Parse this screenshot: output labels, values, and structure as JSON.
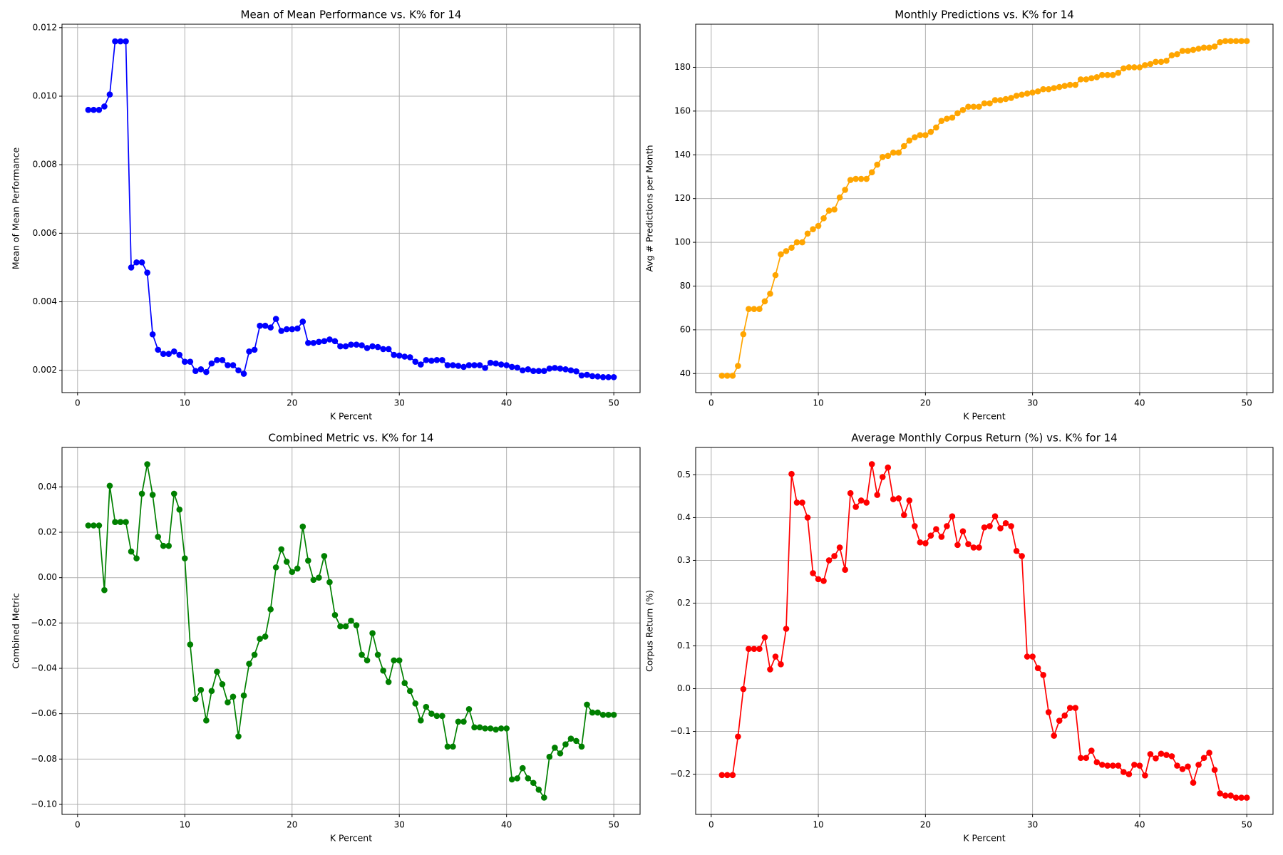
{
  "chart_data": [
    {
      "type": "line",
      "title": "Mean of Mean Performance vs. K% for 14",
      "x_label": "K Percent",
      "y_label": "Mean of Mean Performance",
      "color": "#0000ff",
      "grid": true,
      "xlim": [
        -1.45,
        52.45
      ],
      "ylim": [
        0.00135,
        0.0121
      ],
      "xticks": [
        0,
        10,
        20,
        30,
        40,
        50
      ],
      "yticks": [
        0.002,
        0.004,
        0.006,
        0.008,
        {
          "value": 0.01,
          "label": "0.010"
        },
        0.012
      ],
      "x": [
        1,
        1.5,
        2,
        2.5,
        3,
        3.5,
        4,
        4.5,
        5,
        5.5,
        6,
        6.5,
        7,
        7.5,
        8,
        8.5,
        9,
        9.5,
        10,
        10.5,
        11,
        11.5,
        12,
        12.5,
        13,
        13.5,
        14,
        14.5,
        15,
        15.5,
        16,
        16.5,
        17,
        17.5,
        18,
        18.5,
        19,
        19.5,
        20,
        20.5,
        21,
        21.5,
        22,
        22.5,
        23,
        23.5,
        24,
        24.5,
        25,
        25.5,
        26,
        26.5,
        27,
        27.5,
        28,
        28.5,
        29,
        29.5,
        30,
        30.5,
        31,
        31.5,
        32,
        32.5,
        33,
        33.5,
        34,
        34.5,
        35,
        35.5,
        36,
        36.5,
        37,
        37.5,
        38,
        38.5,
        39,
        39.5,
        40,
        40.5,
        41,
        41.5,
        42,
        42.5,
        43,
        43.5,
        44,
        44.5,
        45,
        45.5,
        46,
        46.5,
        47,
        47.5,
        48,
        48.5,
        49,
        49.5,
        50
      ],
      "values": [
        0.0096,
        0.0096,
        0.0096,
        0.0097,
        0.01005,
        0.0116,
        0.0116,
        0.0116,
        0.005,
        0.00515,
        0.00515,
        0.00485,
        0.00305,
        0.0026,
        0.00248,
        0.00248,
        0.00255,
        0.00245,
        0.00225,
        0.00225,
        0.00198,
        0.00203,
        0.00195,
        0.0022,
        0.0023,
        0.0023,
        0.00215,
        0.00215,
        0.002,
        0.0019,
        0.00255,
        0.0026,
        0.0033,
        0.0033,
        0.00325,
        0.0035,
        0.00315,
        0.0032,
        0.0032,
        0.00322,
        0.00342,
        0.0028,
        0.0028,
        0.00283,
        0.00285,
        0.0029,
        0.00285,
        0.0027,
        0.0027,
        0.00275,
        0.00275,
        0.00273,
        0.00265,
        0.0027,
        0.00268,
        0.00262,
        0.00262,
        0.00245,
        0.00243,
        0.0024,
        0.00238,
        0.00225,
        0.00217,
        0.0023,
        0.00228,
        0.0023,
        0.0023,
        0.00215,
        0.00215,
        0.00213,
        0.0021,
        0.00215,
        0.00215,
        0.00215,
        0.00207,
        0.00222,
        0.0022,
        0.00217,
        0.00215,
        0.0021,
        0.00208,
        0.002,
        0.00203,
        0.00198,
        0.00198,
        0.00198,
        0.00205,
        0.00207,
        0.00205,
        0.00203,
        0.002,
        0.00197,
        0.00185,
        0.00187,
        0.00183,
        0.00182,
        0.0018,
        0.0018,
        0.0018
      ]
    },
    {
      "type": "line",
      "title": "Monthly Predictions vs. K% for 14",
      "x_label": "K Percent",
      "y_label": "Avg # Predictions per Month",
      "color": "#ffa500",
      "grid": true,
      "xlim": [
        -1.45,
        52.45
      ],
      "ylim": [
        31.3,
        199.7
      ],
      "xticks": [
        0,
        10,
        20,
        30,
        40,
        50
      ],
      "yticks": [
        40,
        60,
        80,
        100,
        120,
        140,
        160,
        180
      ],
      "x": [
        1,
        1.5,
        2,
        2.5,
        3,
        3.5,
        4,
        4.5,
        5,
        5.5,
        6,
        6.5,
        7,
        7.5,
        8,
        8.5,
        9,
        9.5,
        10,
        10.5,
        11,
        11.5,
        12,
        12.5,
        13,
        13.5,
        14,
        14.5,
        15,
        15.5,
        16,
        16.5,
        17,
        17.5,
        18,
        18.5,
        19,
        19.5,
        20,
        20.5,
        21,
        21.5,
        22,
        22.5,
        23,
        23.5,
        24,
        24.5,
        25,
        25.5,
        26,
        26.5,
        27,
        27.5,
        28,
        28.5,
        29,
        29.5,
        30,
        30.5,
        31,
        31.5,
        32,
        32.5,
        33,
        33.5,
        34,
        34.5,
        35,
        35.5,
        36,
        36.5,
        37,
        37.5,
        38,
        38.5,
        39,
        39.5,
        40,
        40.5,
        41,
        41.5,
        42,
        42.5,
        43,
        43.5,
        44,
        44.5,
        45,
        45.5,
        46,
        46.5,
        47,
        47.5,
        48,
        48.5,
        49,
        49.5,
        50
      ],
      "values": [
        39,
        39,
        39,
        43.5,
        58,
        69.5,
        69.5,
        69.5,
        73,
        76.5,
        85,
        94.5,
        96,
        97.5,
        100,
        100,
        104,
        106,
        107.5,
        111,
        114.5,
        115,
        120.5,
        124,
        128.5,
        129,
        129,
        129,
        132,
        135.5,
        139,
        139.5,
        141,
        141,
        144,
        146.5,
        148,
        149,
        149,
        150.5,
        152.5,
        155.5,
        156.5,
        157,
        159,
        160.5,
        162,
        162,
        162,
        163.5,
        163.5,
        165,
        165,
        165.5,
        166,
        167,
        167.5,
        168,
        168.5,
        169,
        170,
        170,
        170.5,
        171,
        171.5,
        172,
        172,
        174.5,
        174.5,
        175,
        175.5,
        176.5,
        176.5,
        176.5,
        177.5,
        179.5,
        180,
        180,
        180,
        181,
        181.5,
        182.5,
        182.5,
        183,
        185.5,
        186,
        187.5,
        187.5,
        188,
        188.5,
        189,
        189,
        189.5,
        191.5,
        192,
        192,
        192,
        192,
        192
      ]
    },
    {
      "type": "line",
      "title": "Combined Metric vs. K% for 14",
      "x_label": "K Percent",
      "y_label": "Combined Metric",
      "color": "#008000",
      "grid": true,
      "xlim": [
        -1.45,
        52.45
      ],
      "ylim": [
        -0.1044,
        0.0574
      ],
      "xticks": [
        0,
        10,
        20,
        30,
        40,
        50
      ],
      "yticks": [
        {
          "value": -0.1,
          "label": "−0.10"
        },
        {
          "value": -0.08,
          "label": "−0.08"
        },
        {
          "value": -0.06,
          "label": "−0.06"
        },
        {
          "value": -0.04,
          "label": "−0.04"
        },
        {
          "value": -0.02,
          "label": "−0.02"
        },
        {
          "value": 0,
          "label": "0.00"
        },
        0.02,
        0.04
      ],
      "x": [
        1,
        1.5,
        2,
        2.5,
        3,
        3.5,
        4,
        4.5,
        5,
        5.5,
        6,
        6.5,
        7,
        7.5,
        8,
        8.5,
        9,
        9.5,
        10,
        10.5,
        11,
        11.5,
        12,
        12.5,
        13,
        13.5,
        14,
        14.5,
        15,
        15.5,
        16,
        16.5,
        17,
        17.5,
        18,
        18.5,
        19,
        19.5,
        20,
        20.5,
        21,
        21.5,
        22,
        22.5,
        23,
        23.5,
        24,
        24.5,
        25,
        25.5,
        26,
        26.5,
        27,
        27.5,
        28,
        28.5,
        29,
        29.5,
        30,
        30.5,
        31,
        31.5,
        32,
        32.5,
        33,
        33.5,
        34,
        34.5,
        35,
        35.5,
        36,
        36.5,
        37,
        37.5,
        38,
        38.5,
        39,
        39.5,
        40,
        40.5,
        41,
        41.5,
        42,
        42.5,
        43,
        43.5,
        44,
        44.5,
        45,
        45.5,
        46,
        46.5,
        47,
        47.5,
        48,
        48.5,
        49,
        49.5,
        50
      ],
      "values": [
        0.023,
        0.023,
        0.023,
        -0.0055,
        0.0405,
        0.0245,
        0.0245,
        0.0245,
        0.0115,
        0.0085,
        0.037,
        0.05,
        0.0365,
        0.018,
        0.014,
        0.014,
        0.037,
        0.03,
        0.0085,
        -0.0295,
        -0.0535,
        -0.0495,
        -0.063,
        -0.05,
        -0.0415,
        -0.047,
        -0.055,
        -0.0525,
        -0.07,
        -0.052,
        -0.038,
        -0.034,
        -0.027,
        -0.026,
        -0.014,
        0.0045,
        0.0125,
        0.007,
        0.0025,
        0.004,
        0.0225,
        0.0075,
        -0.001,
        0,
        0.0095,
        -0.002,
        -0.0165,
        -0.0215,
        -0.0215,
        -0.019,
        -0.021,
        -0.034,
        -0.0365,
        -0.0245,
        -0.034,
        -0.041,
        -0.046,
        -0.0365,
        -0.0365,
        -0.0465,
        -0.05,
        -0.0555,
        -0.063,
        -0.057,
        -0.06,
        -0.061,
        -0.061,
        -0.0745,
        -0.0745,
        -0.0635,
        -0.0635,
        -0.058,
        -0.066,
        -0.066,
        -0.0665,
        -0.0665,
        -0.067,
        -0.0665,
        -0.0665,
        -0.089,
        -0.0885,
        -0.084,
        -0.0885,
        -0.0905,
        -0.0935,
        -0.097,
        -0.079,
        -0.075,
        -0.0775,
        -0.0735,
        -0.071,
        -0.072,
        -0.0745,
        -0.056,
        -0.0595,
        -0.0595,
        -0.0605,
        -0.0605,
        -0.0605
      ]
    },
    {
      "type": "line",
      "title": "Average Monthly Corpus Return (%) vs. K%  for 14",
      "x_label": "K Percent",
      "y_label": "Corpus Return (%)",
      "color": "#ff0000",
      "grid": true,
      "xlim": [
        -1.45,
        52.45
      ],
      "ylim": [
        -0.294,
        0.564
      ],
      "xticks": [
        0,
        10,
        20,
        30,
        40,
        50
      ],
      "yticks": [
        {
          "value": -0.2,
          "label": "−0.2"
        },
        {
          "value": -0.1,
          "label": "−0.1"
        },
        {
          "value": 0,
          "label": "0.0"
        },
        0.1,
        0.2,
        0.3,
        0.4,
        0.5
      ],
      "x": [
        1,
        1.5,
        2,
        2.5,
        3,
        3.5,
        4,
        4.5,
        5,
        5.5,
        6,
        6.5,
        7,
        7.5,
        8,
        8.5,
        9,
        9.5,
        10,
        10.5,
        11,
        11.5,
        12,
        12.5,
        13,
        13.5,
        14,
        14.5,
        15,
        15.5,
        16,
        16.5,
        17,
        17.5,
        18,
        18.5,
        19,
        19.5,
        20,
        20.5,
        21,
        21.5,
        22,
        22.5,
        23,
        23.5,
        24,
        24.5,
        25,
        25.5,
        26,
        26.5,
        27,
        27.5,
        28,
        28.5,
        29,
        29.5,
        30,
        30.5,
        31,
        31.5,
        32,
        32.5,
        33,
        33.5,
        34,
        34.5,
        35,
        35.5,
        36,
        36.5,
        37,
        37.5,
        38,
        38.5,
        39,
        39.5,
        40,
        40.5,
        41,
        41.5,
        42,
        42.5,
        43,
        43.5,
        44,
        44.5,
        45,
        45.5,
        46,
        46.5,
        47,
        47.5,
        48,
        48.5,
        49,
        49.5,
        50
      ],
      "values": [
        -0.202,
        -0.202,
        -0.202,
        -0.112,
        -0.001,
        0.093,
        0.093,
        0.093,
        0.12,
        0.045,
        0.075,
        0.057,
        0.14,
        0.502,
        0.435,
        0.435,
        0.4,
        0.27,
        0.256,
        0.252,
        0.3,
        0.31,
        0.33,
        0.278,
        0.457,
        0.425,
        0.44,
        0.435,
        0.525,
        0.453,
        0.495,
        0.517,
        0.443,
        0.445,
        0.406,
        0.44,
        0.38,
        0.342,
        0.34,
        0.358,
        0.373,
        0.355,
        0.38,
        0.403,
        0.336,
        0.368,
        0.338,
        0.33,
        0.33,
        0.377,
        0.38,
        0.403,
        0.375,
        0.387,
        0.38,
        0.322,
        0.31,
        0.075,
        0.075,
        0.048,
        0.032,
        -0.055,
        -0.11,
        -0.075,
        -0.063,
        -0.045,
        -0.045,
        -0.162,
        -0.162,
        -0.145,
        -0.172,
        -0.178,
        -0.18,
        -0.18,
        -0.18,
        -0.195,
        -0.2,
        -0.178,
        -0.18,
        -0.203,
        -0.153,
        -0.163,
        -0.152,
        -0.155,
        -0.158,
        -0.18,
        -0.188,
        -0.182,
        -0.22,
        -0.178,
        -0.162,
        -0.15,
        -0.19,
        -0.245,
        -0.25,
        -0.25,
        -0.255,
        -0.255,
        -0.255
      ]
    }
  ]
}
